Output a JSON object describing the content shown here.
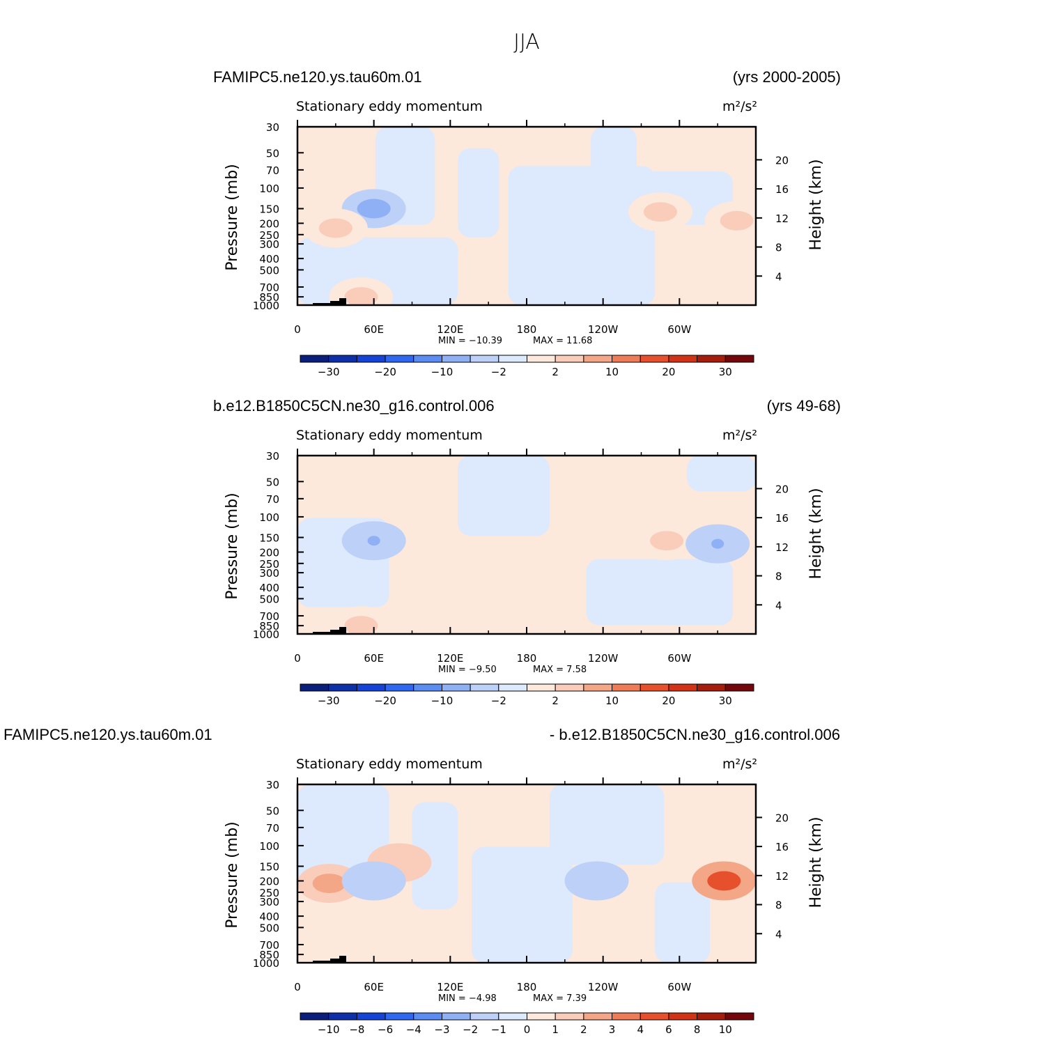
{
  "title": "JJA",
  "colors": {
    "scale": [
      "#0a1f7a",
      "#0d2fa8",
      "#1543d6",
      "#2e67f0",
      "#5a8cf2",
      "#8fb0f5",
      "#bcd0f8",
      "#dde9fd",
      "#fde8dc",
      "#f9cdb9",
      "#f4a787",
      "#ee7c57",
      "#e6502c",
      "#d13316",
      "#a51d0c",
      "#74070b"
    ],
    "frame": "#000000"
  },
  "chart_data": [
    {
      "type": "heatmap",
      "case_left": "FAMIPC5.ne120.ys.tau60m.01",
      "case_right": "(yrs 2000-2005)",
      "variable": "Stationary eddy momentum",
      "units": "m²/s²",
      "ylabel": "Pressure (mb)",
      "ylabel2": "Height (km)",
      "x_ticks": [
        "0",
        "60E",
        "120E",
        "180",
        "120W",
        "60W"
      ],
      "y_ticks": [
        "30",
        "50",
        "70",
        "100",
        "150",
        "200",
        "250",
        "300",
        "400",
        "500",
        "700",
        "850",
        "1000"
      ],
      "y2_ticks": [
        "20",
        "16",
        "12",
        "8",
        "4"
      ],
      "min_text": "MIN = −10.39",
      "max_text": "MAX = 11.68",
      "min": -10.39,
      "max": 11.68,
      "colorbar_levels": [
        "−30",
        "−20",
        "−10",
        "−2",
        "2",
        "10",
        "20",
        "30"
      ],
      "features": [
        {
          "lon": 60,
          "p": 150,
          "value": -8
        },
        {
          "lon": 30,
          "p": 220,
          "value": 5
        },
        {
          "lon": 285,
          "p": 160,
          "value": 4
        },
        {
          "lon": 345,
          "p": 190,
          "value": 5
        },
        {
          "lon": 50,
          "p": 850,
          "value": 5
        }
      ]
    },
    {
      "type": "heatmap",
      "case_left": "b.e12.B1850C5CN.ne30_g16.control.006",
      "case_right": "(yrs 49-68)",
      "variable": "Stationary eddy momentum",
      "units": "m²/s²",
      "ylabel": "Pressure (mb)",
      "ylabel2": "Height (km)",
      "x_ticks": [
        "0",
        "60E",
        "120E",
        "180",
        "120W",
        "60W"
      ],
      "y_ticks": [
        "30",
        "50",
        "70",
        "100",
        "150",
        "200",
        "250",
        "300",
        "400",
        "500",
        "700",
        "850",
        "1000"
      ],
      "y2_ticks": [
        "20",
        "16",
        "12",
        "8",
        "4"
      ],
      "min_text": "MIN = −9.50",
      "max_text": "MAX = 7.58",
      "min": -9.5,
      "max": 7.58,
      "colorbar_levels": [
        "−30",
        "−20",
        "−10",
        "−2",
        "2",
        "10",
        "20",
        "30"
      ],
      "features": [
        {
          "lon": 60,
          "p": 160,
          "value": -6
        },
        {
          "lon": 290,
          "p": 160,
          "value": 5
        },
        {
          "lon": 330,
          "p": 170,
          "value": -6
        },
        {
          "lon": 50,
          "p": 850,
          "value": 5
        }
      ]
    },
    {
      "type": "heatmap",
      "case_left": "FAMIPC5.ne120.ys.tau60m.01",
      "case_right": "- b.e12.B1850C5CN.ne30_g16.control.006",
      "variable": "Stationary eddy momentum",
      "units": "m²/s²",
      "ylabel": "Pressure (mb)",
      "ylabel2": "Height (km)",
      "x_ticks": [
        "0",
        "60E",
        "120E",
        "180",
        "120W",
        "60W"
      ],
      "y_ticks": [
        "30",
        "50",
        "70",
        "100",
        "150",
        "200",
        "250",
        "300",
        "400",
        "500",
        "700",
        "850",
        "1000"
      ],
      "y2_ticks": [
        "20",
        "16",
        "12",
        "8",
        "4"
      ],
      "min_text": "MIN = −4.98",
      "max_text": "MAX = 7.39",
      "min": -4.98,
      "max": 7.39,
      "colorbar_levels": [
        "−10",
        "−8",
        "−6",
        "−4",
        "−3",
        "−2",
        "−1",
        "0",
        "1",
        "2",
        "3",
        "4",
        "6",
        "8",
        "10"
      ],
      "features": [
        {
          "lon": 335,
          "p": 200,
          "value": 6
        },
        {
          "lon": 25,
          "p": 210,
          "value": 3
        },
        {
          "lon": 80,
          "p": 140,
          "value": 2
        },
        {
          "lon": 235,
          "p": 200,
          "value": -2
        },
        {
          "lon": 60,
          "p": 200,
          "value": -2
        }
      ]
    }
  ]
}
